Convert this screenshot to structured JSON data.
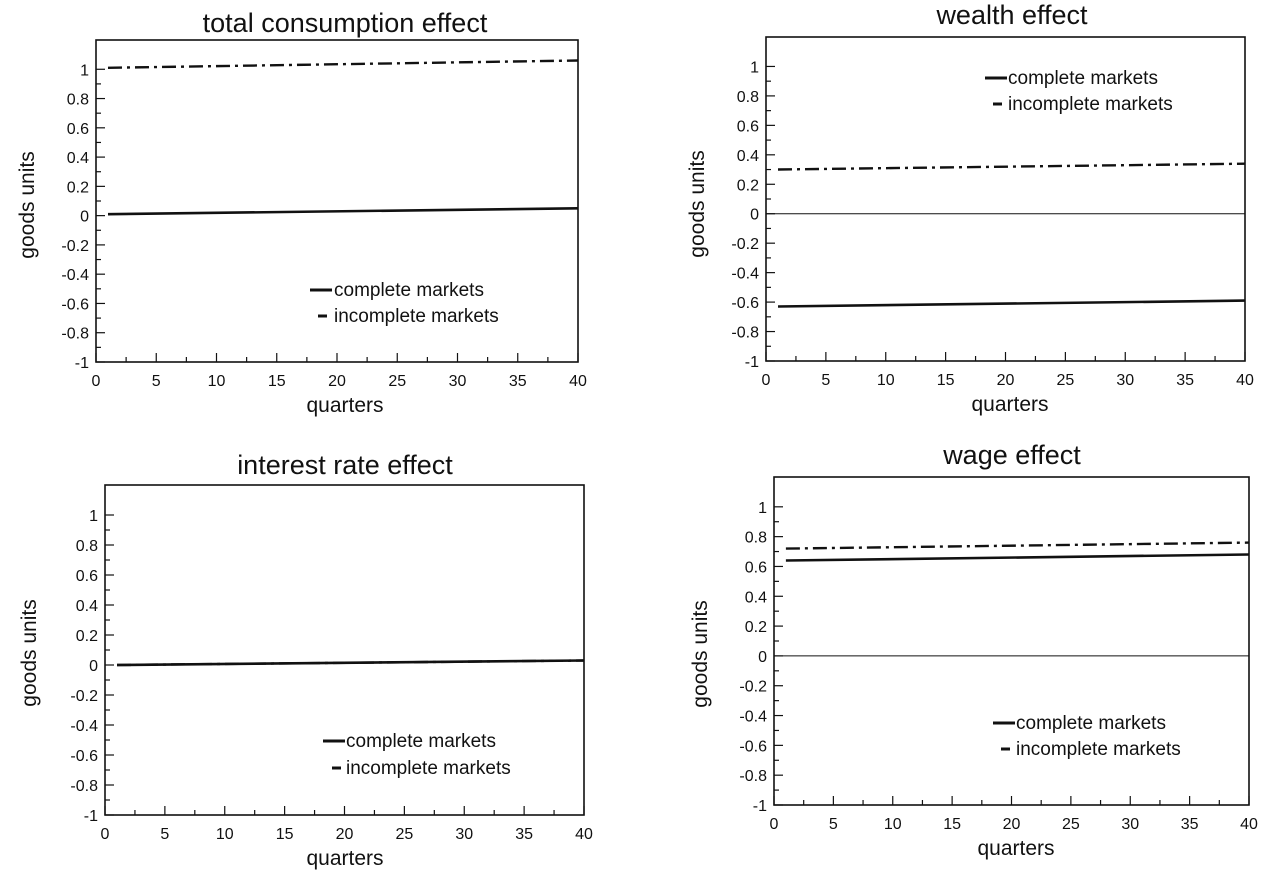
{
  "chart_data": [
    {
      "type": "line",
      "title": "total consumption effect",
      "xlabel": "quarters",
      "ylabel": "goods units",
      "xlim": [
        0,
        40
      ],
      "ylim": [
        -1,
        1.2
      ],
      "xticks": [
        0,
        5,
        10,
        15,
        20,
        25,
        30,
        35,
        40
      ],
      "yticks": [
        -1,
        -0.8,
        -0.6,
        -0.4,
        -0.2,
        0,
        0.2,
        0.4,
        0.6,
        0.8,
        1
      ],
      "ytick_labels": [
        "-1",
        "-0.8",
        "-0.6",
        "-0.4",
        "-0.2",
        "0",
        "0.2",
        "0.4",
        "0.6",
        "0.8",
        "1"
      ],
      "grid": false,
      "legend_position": "lower-right",
      "zero_line": false,
      "series": [
        {
          "name": "complete markets",
          "style": "solid",
          "x": [
            1,
            40
          ],
          "y": [
            0.01,
            0.05
          ]
        },
        {
          "name": "incomplete markets",
          "style": "dashdot",
          "x": [
            1,
            40
          ],
          "y": [
            1.01,
            1.06
          ]
        }
      ]
    },
    {
      "type": "line",
      "title": "wealth effect",
      "xlabel": "quarters",
      "ylabel": "goods units",
      "xlim": [
        0,
        40
      ],
      "ylim": [
        -1,
        1.2
      ],
      "xticks": [
        0,
        5,
        10,
        15,
        20,
        25,
        30,
        35,
        40
      ],
      "yticks": [
        -1,
        -0.8,
        -0.6,
        -0.4,
        -0.2,
        0,
        0.2,
        0.4,
        0.6,
        0.8,
        1
      ],
      "ytick_labels": [
        "-1",
        "-0.8",
        "-0.6",
        "-0.4",
        "-0.2",
        "0",
        "0.2",
        "0.4",
        "0.6",
        "0.8",
        "1"
      ],
      "grid": false,
      "legend_position": "top-right",
      "zero_line": true,
      "series": [
        {
          "name": "complete markets",
          "style": "solid",
          "x": [
            1,
            40
          ],
          "y": [
            -0.63,
            -0.59
          ]
        },
        {
          "name": "incomplete markets",
          "style": "dashdot",
          "x": [
            1,
            40
          ],
          "y": [
            0.3,
            0.34
          ]
        }
      ]
    },
    {
      "type": "line",
      "title": "interest rate effect",
      "xlabel": "quarters",
      "ylabel": "goods units",
      "xlim": [
        0,
        40
      ],
      "ylim": [
        -1,
        1.2
      ],
      "xticks": [
        0,
        5,
        10,
        15,
        20,
        25,
        30,
        35,
        40
      ],
      "yticks": [
        -1,
        -0.8,
        -0.6,
        -0.4,
        -0.2,
        0,
        0.2,
        0.4,
        0.6,
        0.8,
        1
      ],
      "ytick_labels": [
        "-1",
        "-0.8",
        "-0.6",
        "-0.4",
        "-0.2",
        "0",
        "0.2",
        "0.4",
        "0.6",
        "0.8",
        "1"
      ],
      "grid": false,
      "legend_position": "lower-right",
      "zero_line": false,
      "series": [
        {
          "name": "complete markets",
          "style": "solid",
          "x": [
            1,
            40
          ],
          "y": [
            0.0,
            0.03
          ]
        },
        {
          "name": "incomplete markets",
          "style": "dashdot",
          "x": [
            1,
            40
          ],
          "y": [
            0.0,
            0.03
          ]
        }
      ]
    },
    {
      "type": "line",
      "title": "wage effect",
      "xlabel": "quarters",
      "ylabel": "goods units",
      "xlim": [
        0,
        40
      ],
      "ylim": [
        -1,
        1.2
      ],
      "xticks": [
        0,
        5,
        10,
        15,
        20,
        25,
        30,
        35,
        40
      ],
      "yticks": [
        -1,
        -0.8,
        -0.6,
        -0.4,
        -0.2,
        0,
        0.2,
        0.4,
        0.6,
        0.8,
        1
      ],
      "ytick_labels": [
        "-1",
        "-0.8",
        "-0.6",
        "-0.4",
        "-0.2",
        "0",
        "0.2",
        "0.4",
        "0.6",
        "0.8",
        "1"
      ],
      "grid": false,
      "legend_position": "lower-right",
      "zero_line": true,
      "series": [
        {
          "name": "complete markets",
          "style": "solid",
          "x": [
            1,
            40
          ],
          "y": [
            0.64,
            0.68
          ]
        },
        {
          "name": "incomplete markets",
          "style": "dashdot",
          "x": [
            1,
            40
          ],
          "y": [
            0.72,
            0.76
          ]
        }
      ]
    }
  ]
}
